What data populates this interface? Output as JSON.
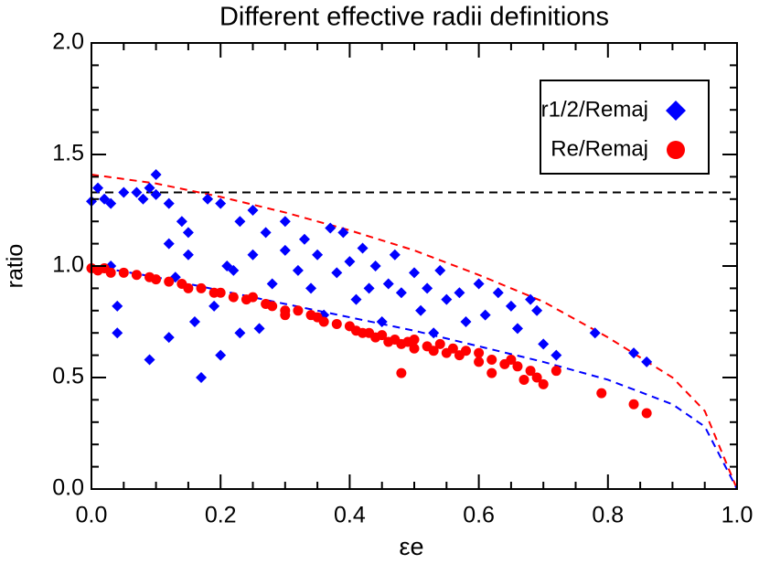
{
  "chart_data": {
    "type": "scatter",
    "title": "Different effective radii definitions",
    "x_label": "εe",
    "y_label": "ratio",
    "xlim": [
      0,
      1
    ],
    "ylim": [
      0,
      2
    ],
    "xticks": [
      {
        "value": 0,
        "label": "0.0"
      },
      0.2,
      0.4,
      0.6,
      0.8,
      {
        "value": 1,
        "label": "1.0"
      }
    ],
    "yticks": [
      {
        "value": 0,
        "label": "0.0"
      },
      0.5,
      {
        "value": 1,
        "label": "1.0"
      },
      1.5,
      {
        "value": 2,
        "label": "2.0"
      }
    ],
    "xminor": [
      0.05,
      0.1,
      0.15,
      0.25,
      0.3,
      0.35,
      0.45,
      0.5,
      0.55,
      0.65,
      0.7,
      0.75,
      0.85,
      0.9,
      0.95
    ],
    "yminor": [
      0.1,
      0.2,
      0.3,
      0.4,
      0.6,
      0.7,
      0.8,
      0.9,
      1.1,
      1.2,
      1.3,
      1.4,
      1.6,
      1.7,
      1.8,
      1.9
    ],
    "legend": "upper right",
    "series": [
      {
        "name": "r1/2/Remaj",
        "color": "#0000ff",
        "marker": "diamond",
        "x": [
          0.0,
          0.01,
          0.02,
          0.03,
          0.03,
          0.04,
          0.04,
          0.05,
          0.07,
          0.08,
          0.09,
          0.1,
          0.1,
          0.12,
          0.12,
          0.12,
          0.13,
          0.14,
          0.15,
          0.15,
          0.16,
          0.17,
          0.18,
          0.19,
          0.2,
          0.21,
          0.22,
          0.23,
          0.23,
          0.25,
          0.25,
          0.26,
          0.27,
          0.28,
          0.3,
          0.3,
          0.32,
          0.33,
          0.34,
          0.35,
          0.36,
          0.37,
          0.38,
          0.39,
          0.4,
          0.41,
          0.42,
          0.43,
          0.44,
          0.45,
          0.46,
          0.47,
          0.48,
          0.5,
          0.51,
          0.52,
          0.54,
          0.55,
          0.57,
          0.58,
          0.6,
          0.61,
          0.63,
          0.65,
          0.66,
          0.68,
          0.69,
          0.7,
          0.72,
          0.78,
          0.84,
          0.86,
          0.09,
          0.2,
          0.53
        ],
        "values": [
          1.29,
          1.35,
          1.3,
          1.28,
          1.0,
          0.82,
          0.7,
          1.33,
          1.33,
          1.3,
          1.35,
          1.41,
          1.32,
          1.28,
          1.1,
          0.68,
          0.95,
          1.2,
          1.15,
          1.05,
          0.75,
          0.5,
          1.3,
          0.82,
          1.28,
          1.0,
          0.98,
          1.2,
          0.7,
          1.25,
          1.05,
          0.72,
          1.15,
          0.92,
          1.2,
          1.07,
          0.98,
          1.12,
          0.9,
          1.05,
          0.78,
          1.17,
          0.97,
          1.15,
          1.02,
          0.85,
          1.08,
          0.9,
          1.0,
          0.75,
          0.92,
          1.05,
          0.88,
          0.97,
          0.8,
          0.9,
          0.98,
          0.85,
          0.88,
          0.75,
          0.92,
          0.78,
          0.88,
          0.82,
          0.72,
          0.85,
          0.8,
          0.65,
          0.6,
          0.7,
          0.61,
          0.57,
          0.58,
          0.6,
          0.7
        ]
      },
      {
        "name": "Re/Remaj",
        "color": "#ff0000",
        "marker": "circle",
        "x": [
          0.0,
          0.01,
          0.02,
          0.03,
          0.05,
          0.07,
          0.09,
          0.1,
          0.12,
          0.14,
          0.15,
          0.17,
          0.19,
          0.2,
          0.22,
          0.24,
          0.25,
          0.27,
          0.28,
          0.3,
          0.3,
          0.32,
          0.34,
          0.35,
          0.36,
          0.38,
          0.4,
          0.41,
          0.42,
          0.43,
          0.44,
          0.45,
          0.46,
          0.47,
          0.48,
          0.49,
          0.5,
          0.5,
          0.52,
          0.53,
          0.54,
          0.55,
          0.56,
          0.57,
          0.58,
          0.6,
          0.6,
          0.62,
          0.64,
          0.65,
          0.66,
          0.68,
          0.69,
          0.7,
          0.72,
          0.79,
          0.84,
          0.86,
          0.48,
          0.62,
          0.67
        ],
        "values": [
          0.99,
          0.98,
          0.99,
          0.97,
          0.97,
          0.96,
          0.95,
          0.94,
          0.93,
          0.92,
          0.9,
          0.9,
          0.88,
          0.88,
          0.86,
          0.85,
          0.86,
          0.83,
          0.82,
          0.8,
          0.78,
          0.8,
          0.78,
          0.77,
          0.75,
          0.74,
          0.73,
          0.71,
          0.7,
          0.7,
          0.68,
          0.69,
          0.66,
          0.67,
          0.65,
          0.66,
          0.63,
          0.67,
          0.64,
          0.62,
          0.65,
          0.61,
          0.63,
          0.6,
          0.62,
          0.61,
          0.57,
          0.58,
          0.56,
          0.58,
          0.55,
          0.53,
          0.5,
          0.47,
          0.53,
          0.43,
          0.38,
          0.34,
          0.52,
          0.52,
          0.49
        ]
      }
    ],
    "curves": [
      {
        "color": "#ff0000",
        "x": [
          0,
          0.1,
          0.2,
          0.3,
          0.4,
          0.5,
          0.6,
          0.7,
          0.8,
          0.9,
          0.95,
          1
        ],
        "values": [
          1.41,
          1.37,
          1.31,
          1.24,
          1.16,
          1.07,
          0.96,
          0.84,
          0.68,
          0.5,
          0.35,
          0
        ]
      },
      {
        "color": "#0000ff",
        "x": [
          0,
          0.1,
          0.2,
          0.3,
          0.4,
          0.5,
          0.6,
          0.7,
          0.8,
          0.9,
          0.95,
          1
        ],
        "values": [
          1.0,
          0.95,
          0.89,
          0.83,
          0.77,
          0.71,
          0.64,
          0.57,
          0.49,
          0.38,
          0.28,
          0
        ]
      }
    ],
    "reference_line": {
      "value": 1.33,
      "color": "#000000"
    }
  }
}
